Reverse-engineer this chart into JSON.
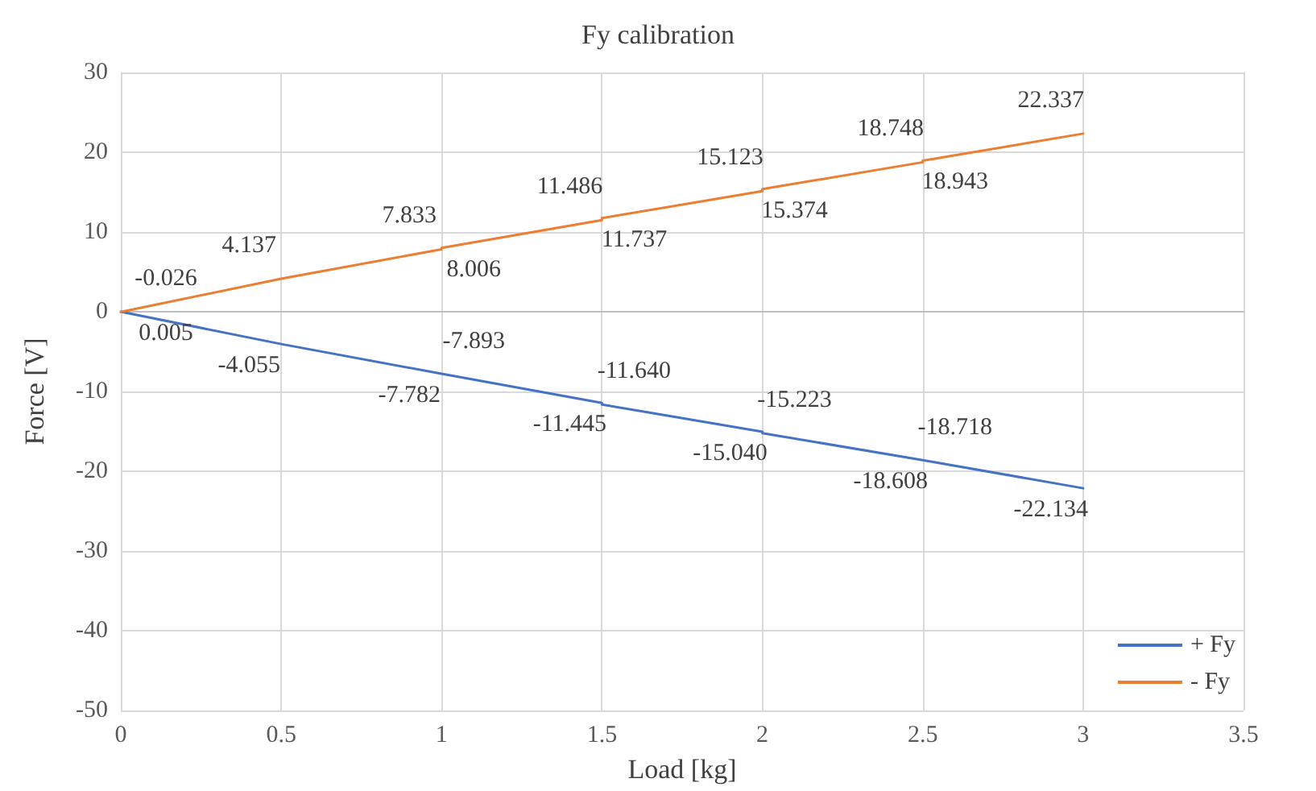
{
  "chart_data": {
    "type": "line",
    "title": "Fy calibration",
    "xlabel": "Load [kg]",
    "ylabel": "Force [V]",
    "xlim": [
      0,
      3.5
    ],
    "xticks": [
      0,
      0.5,
      1,
      1.5,
      2,
      2.5,
      3,
      3.5
    ],
    "ylim": [
      -50,
      30
    ],
    "yticks": [
      -50,
      -40,
      -30,
      -20,
      -10,
      0,
      10,
      20,
      30
    ],
    "grid": true,
    "legend": "bottom right",
    "marker": "none",
    "series": [
      {
        "name": "+ Fy",
        "color": "#4472c4",
        "x": [
          0,
          0.5,
          1,
          1,
          1.5,
          1.5,
          2,
          2,
          2.5,
          2.5,
          3
        ],
        "values": [
          0.005,
          -4.055,
          -7.782,
          -7.893,
          -11.445,
          -11.64,
          -15.04,
          -15.223,
          -18.608,
          -18.718,
          -22.134
        ],
        "value_labels": [
          "0.005",
          "-4.055",
          "-7.782",
          "-7.893",
          "-11.445",
          "-11.640",
          "-15.040",
          "-15.223",
          "-18.608",
          "-18.718",
          "-22.134"
        ]
      },
      {
        "name": "- Fy",
        "color": "#ed7d31",
        "x": [
          0,
          0.5,
          1,
          1,
          1.5,
          1.5,
          2,
          2,
          2.5,
          2.5,
          3
        ],
        "values": [
          -0.026,
          4.137,
          7.833,
          8.006,
          11.486,
          11.737,
          15.123,
          15.374,
          18.748,
          18.943,
          22.337
        ],
        "value_labels": [
          "-0.026",
          "4.137",
          "7.833",
          "8.006",
          "11.486",
          "11.737",
          "15.123",
          "15.374",
          "18.748",
          "18.943",
          "22.337"
        ]
      }
    ]
  }
}
